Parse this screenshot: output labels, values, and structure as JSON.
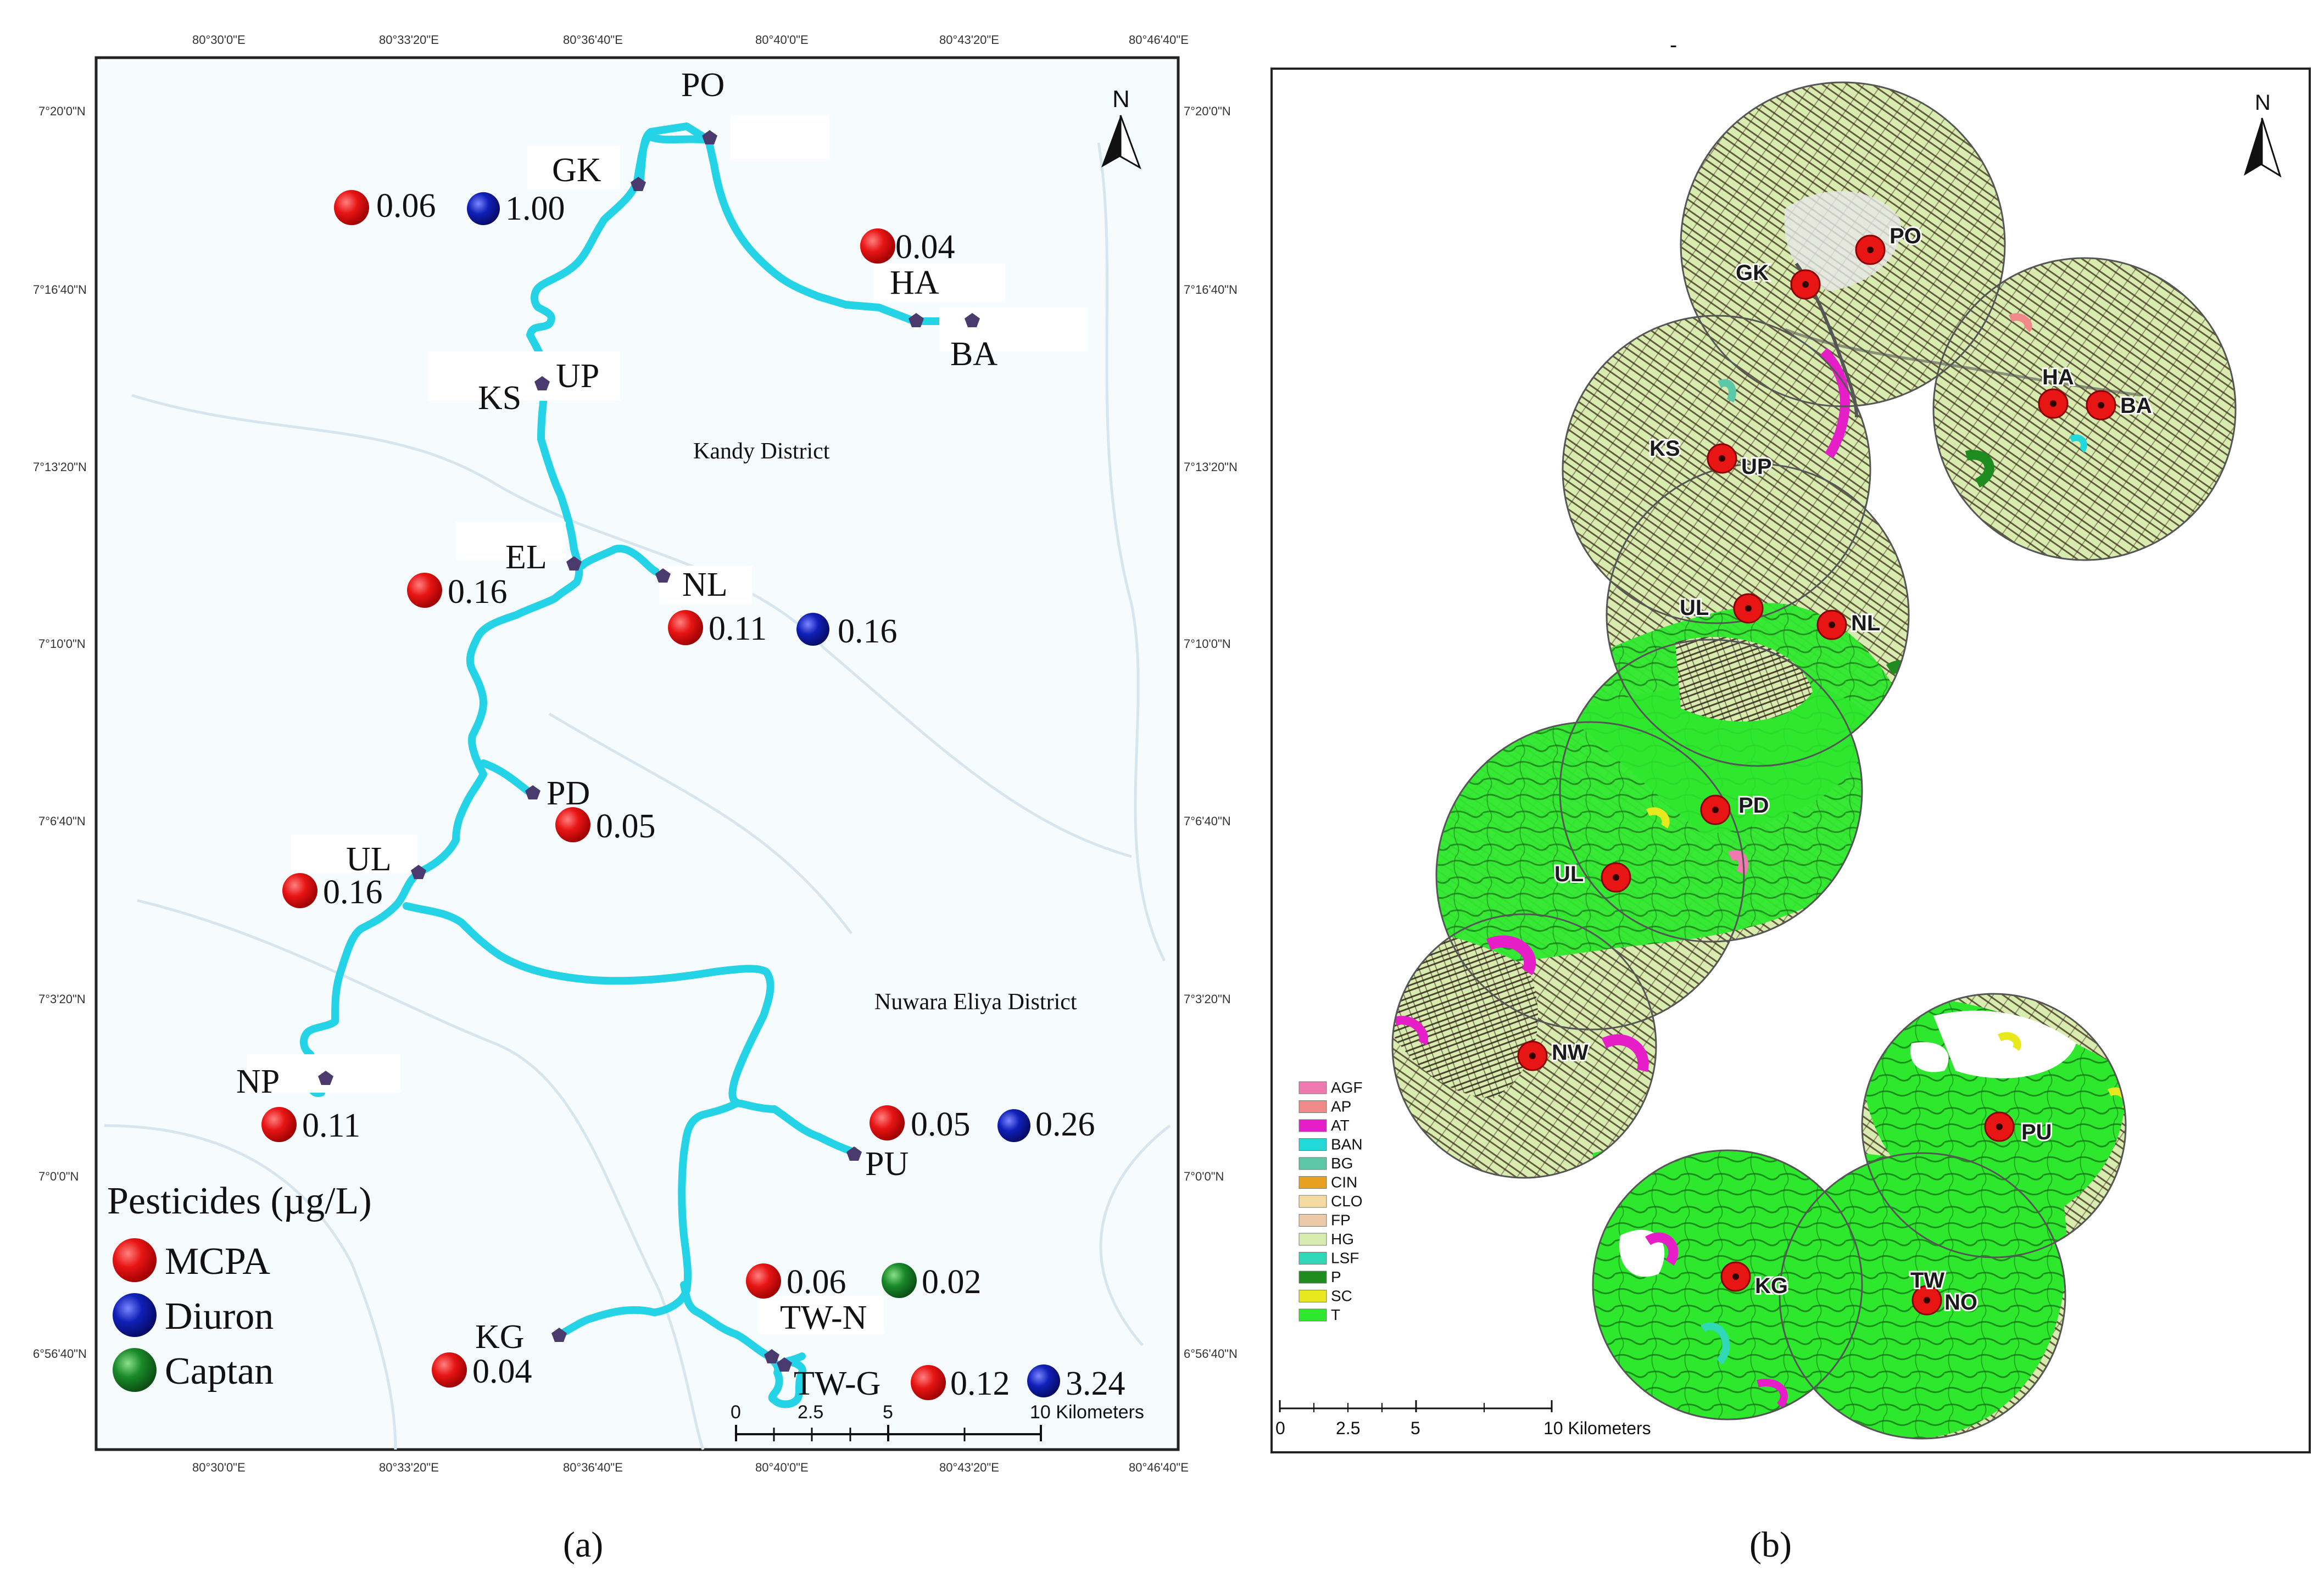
{
  "panel_a": {
    "caption": "(a)",
    "top_ticks": [
      "80°30'0\"E",
      "80°33'20\"E",
      "80°36'40\"E",
      "80°40'0\"E",
      "80°43'20\"E",
      "80°46'40\"E"
    ],
    "bottom_ticks": [
      "80°30'0\"E",
      "80°33'20\"E",
      "80°36'40\"E",
      "80°40'0\"E",
      "80°43'20\"E",
      "80°46'40\"E"
    ],
    "left_ticks": [
      "7°20'0\"N",
      "7°16'40\"N",
      "7°13'20\"N",
      "7°10'0\"N",
      "7°6'40\"N",
      "7°3'20\"N",
      "7°0'0\"N",
      "6°56'40\"N"
    ],
    "right_ticks": [
      "7°20'0\"N",
      "7°16'40\"N",
      "7°13'20\"N",
      "7°10'0\"N",
      "7°6'40\"N",
      "7°3'20\"N",
      "7°0'0\"N",
      "6°56'40\"N"
    ],
    "north_label": "N",
    "district_labels": [
      "Kandy District",
      "Nuwara Eliya District"
    ],
    "site_labels": {
      "PO": "PO",
      "GK": "GK",
      "HA": "HA",
      "BA": "BA",
      "KS": "KS",
      "UP": "UP",
      "EL": "EL",
      "NL": "NL",
      "PD": "PD",
      "UL": "UL",
      "NP": "NP",
      "PU": "PU",
      "KG": "KG",
      "TWN": "TW-N",
      "TWG": "TW-G"
    },
    "measurements": [
      {
        "id": "m1",
        "site": "GK",
        "pesticide": "MCPA",
        "value": "0.06"
      },
      {
        "id": "m2",
        "site": "GK",
        "pesticide": "Diuron",
        "value": "1.00"
      },
      {
        "id": "m3",
        "site": "HA",
        "pesticide": "MCPA",
        "value": "0.04"
      },
      {
        "id": "m4",
        "site": "EL",
        "pesticide": "MCPA",
        "value": "0.16"
      },
      {
        "id": "m5",
        "site": "NL",
        "pesticide": "MCPA",
        "value": "0.11"
      },
      {
        "id": "m6",
        "site": "NL",
        "pesticide": "Diuron",
        "value": "0.16"
      },
      {
        "id": "m7",
        "site": "PD",
        "pesticide": "MCPA",
        "value": "0.05"
      },
      {
        "id": "m8",
        "site": "UL",
        "pesticide": "MCPA",
        "value": "0.16"
      },
      {
        "id": "m9",
        "site": "NP",
        "pesticide": "MCPA",
        "value": "0.11"
      },
      {
        "id": "m10",
        "site": "PU",
        "pesticide": "MCPA",
        "value": "0.05"
      },
      {
        "id": "m11",
        "site": "PU",
        "pesticide": "Diuron",
        "value": "0.26"
      },
      {
        "id": "m12",
        "site": "TW-N",
        "pesticide": "MCPA",
        "value": "0.06"
      },
      {
        "id": "m13",
        "site": "TW-N",
        "pesticide": "Captan",
        "value": "0.02"
      },
      {
        "id": "m14",
        "site": "KG",
        "pesticide": "MCPA",
        "value": "0.04"
      },
      {
        "id": "m15",
        "site": "TW-G",
        "pesticide": "MCPA",
        "value": "0.12"
      },
      {
        "id": "m16",
        "site": "TW-G",
        "pesticide": "Diuron",
        "value": "3.24"
      }
    ],
    "legend": {
      "title": "Pesticides (µg/L)",
      "items": [
        {
          "label": "MCPA",
          "color": "#e81515"
        },
        {
          "label": "Diuron",
          "color": "#1020b8"
        },
        {
          "label": "Captan",
          "color": "#1a8a2a"
        }
      ]
    },
    "scale_bar": {
      "ticks": [
        "0",
        "2.5",
        "5",
        "10 Kilometers"
      ]
    },
    "colors": {
      "river": "#25d3e6",
      "site_marker": "#4a3a6e",
      "frame": "#222222"
    }
  },
  "panel_b": {
    "caption": "(b)",
    "dash": "-",
    "north_label": "N",
    "site_labels": {
      "PO": "PO",
      "GK": "GK",
      "HA": "HA",
      "BA": "BA",
      "KS": "KS",
      "UP": "UP",
      "UL1": "UL",
      "NL": "NL",
      "PD": "PD",
      "UL2": "UL",
      "NW": "NW",
      "PU": "PU",
      "KG": "KG",
      "TW": "TW",
      "NO": "NO"
    },
    "legend": [
      {
        "code": "AGF",
        "color": "#f07ab0"
      },
      {
        "code": "AP",
        "color": "#f08a8a"
      },
      {
        "code": "AT",
        "color": "#e61ec8"
      },
      {
        "code": "BAN",
        "color": "#22d8d8"
      },
      {
        "code": "BG",
        "color": "#5cc8a8"
      },
      {
        "code": "CIN",
        "color": "#e8a020"
      },
      {
        "code": "CLO",
        "color": "#f4dca0"
      },
      {
        "code": "FP",
        "color": "#eccaa8"
      },
      {
        "code": "HG",
        "color": "#d8ecb0"
      },
      {
        "code": "LSF",
        "color": "#30d8b8"
      },
      {
        "code": "P",
        "color": "#1e8c1e"
      },
      {
        "code": "SC",
        "color": "#e8e81e"
      },
      {
        "code": "T",
        "color": "#2ee82e"
      }
    ],
    "scale_bar": {
      "ticks": [
        "0",
        "2.5",
        "5",
        "10 Kilometers"
      ]
    }
  }
}
